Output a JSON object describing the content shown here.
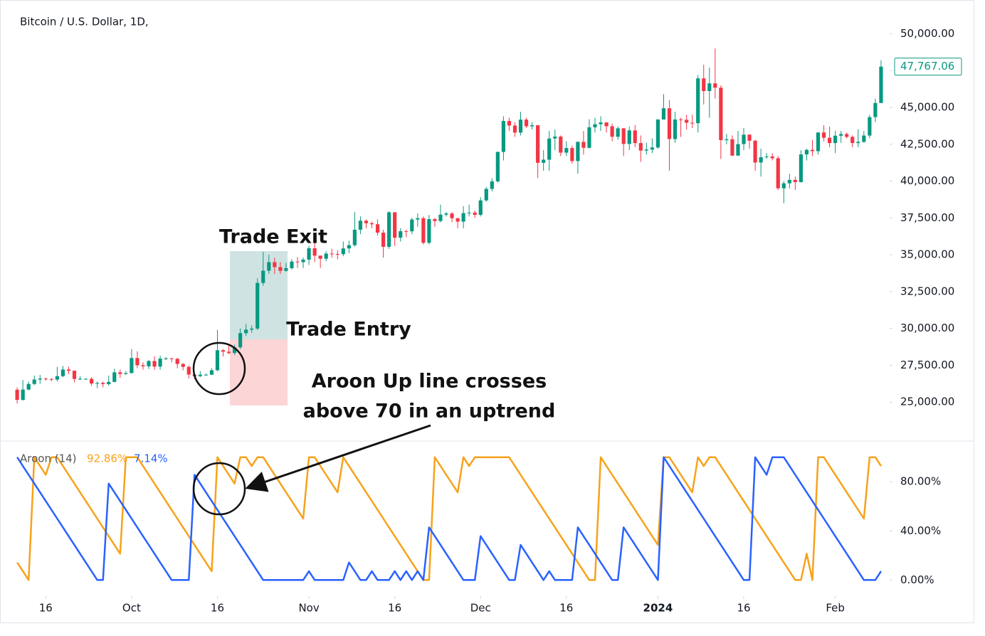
{
  "chart_data": [
    {
      "type": "candlestick",
      "title": "Bitcoin / U.S. Dollar, 1D,",
      "up_color": "#089981",
      "down_color": "#f23645",
      "xlim": [
        -3,
        152.5
      ],
      "ylim": [
        22500,
        52000
      ],
      "yticks": [
        {
          "value": 25000,
          "label": "25,000.00"
        },
        {
          "value": 27500,
          "label": "27,500.00"
        },
        {
          "value": 30000,
          "label": "30,000.00"
        },
        {
          "value": 32500,
          "label": "32,500.00"
        },
        {
          "value": 35000,
          "label": "35,000.00"
        },
        {
          "value": 37500,
          "label": "37,500.00"
        },
        {
          "value": 40000,
          "label": "40,000.00"
        },
        {
          "value": 42500,
          "label": "42,500.00"
        },
        {
          "value": 45000,
          "label": "45,000.00"
        },
        {
          "value": 47500,
          "label": "47,500.00"
        },
        {
          "value": 50000,
          "label": "50,000.00"
        }
      ],
      "last_price_label": "47,767.06",
      "annotations": [
        "Trade Exit",
        "Trade Entry",
        "Aroon Up line crosses",
        "above 70 in an uptrend"
      ],
      "open": [
        25840,
        25150,
        25850,
        26230,
        26530,
        26600,
        26570,
        26530,
        26760,
        27210,
        27130,
        26570,
        26580,
        26580,
        26260,
        26300,
        26220,
        26370,
        27020,
        26910,
        26970,
        27990,
        27500,
        27430,
        27790,
        27410,
        27950,
        27970,
        27940,
        27590,
        27390,
        26870,
        26760,
        26860,
        26860,
        27160,
        28520,
        28420,
        28330,
        28720,
        29680,
        29920,
        29990,
        33090,
        33920,
        34500,
        34160,
        33910,
        34090,
        34540,
        34500,
        34670,
        35440,
        34940,
        34730,
        35080,
        35050,
        35040,
        35430,
        35650,
        36700,
        37310,
        37140,
        37070,
        36500,
        35540,
        37880,
        36160,
        36600,
        36590,
        37390,
        37480,
        35810,
        37420,
        37290,
        37720,
        37800,
        37480,
        37250,
        37830,
        37860,
        37710,
        38690,
        39470,
        39980,
        41980,
        44080,
        43770,
        43290,
        44170,
        43720,
        43790,
        41240,
        41450,
        42890,
        43020,
        41930,
        42240,
        41360,
        42660,
        42260,
        43650,
        43860,
        43980,
        43720,
        43010,
        43580,
        42520,
        43440,
        42580,
        42070,
        42140,
        42280,
        44180,
        44940,
        42850,
        44180,
        44160,
        43960,
        43930,
        46970,
        46110,
        46630,
        46340,
        42780,
        42840,
        41730,
        42510,
        43150,
        42740,
        41260,
        41620,
        41670,
        41550,
        39510,
        39850,
        40080,
        39930,
        41810,
        42120,
        42030,
        43300,
        42940,
        42580,
        43080,
        43190,
        43000,
        42580,
        42660,
        43090,
        44340,
        45300
      ],
      "high": [
        26000,
        26500,
        26400,
        26800,
        26850,
        26650,
        26620,
        27400,
        27450,
        27400,
        27150,
        26750,
        26620,
        26700,
        26400,
        26400,
        26800,
        27250,
        27200,
        27100,
        28600,
        28450,
        27700,
        27850,
        28100,
        28150,
        28050,
        28000,
        28000,
        27650,
        27500,
        26950,
        27100,
        26950,
        27300,
        29900,
        28600,
        28900,
        28900,
        30000,
        30300,
        30200,
        33400,
        35200,
        35000,
        34800,
        34500,
        34450,
        34700,
        34850,
        34800,
        35600,
        35900,
        34950,
        35250,
        35400,
        35300,
        35900,
        35950,
        37900,
        37600,
        37400,
        37250,
        37400,
        36700,
        37950,
        37900,
        36800,
        36700,
        37500,
        37800,
        37600,
        37700,
        37500,
        38400,
        37900,
        37900,
        37500,
        38300,
        38400,
        38000,
        38900,
        39600,
        40200,
        42000,
        44400,
        44300,
        44000,
        44700,
        44300,
        44000,
        43800,
        42100,
        43400,
        43500,
        43100,
        42700,
        42400,
        42700,
        43400,
        44200,
        44300,
        44400,
        44000,
        43900,
        43700,
        43600,
        43700,
        43800,
        43100,
        42600,
        42900,
        44200,
        45900,
        45500,
        44700,
        44300,
        44500,
        44500,
        47200,
        47900,
        47700,
        49000,
        46500,
        43200,
        43100,
        43400,
        43600,
        43200,
        42800,
        42200,
        41900,
        41900,
        41700,
        40000,
        40500,
        40300,
        42100,
        42200,
        42800,
        43300,
        43800,
        43700,
        43400,
        43400,
        43300,
        43100,
        43500,
        43400,
        44500,
        45600,
        48200
      ],
      "low": [
        24900,
        25100,
        25800,
        26150,
        26250,
        26450,
        26400,
        26400,
        26700,
        26900,
        26350,
        26500,
        26520,
        26100,
        25950,
        26000,
        26120,
        26350,
        26650,
        26850,
        26950,
        27300,
        27200,
        27250,
        27200,
        27200,
        27850,
        27700,
        27300,
        27150,
        26600,
        26550,
        26700,
        26800,
        26850,
        27100,
        28100,
        28250,
        28200,
        28600,
        29500,
        29700,
        29900,
        32900,
        33700,
        33700,
        33700,
        33850,
        34000,
        34100,
        34100,
        34300,
        34500,
        34100,
        34550,
        34800,
        34700,
        34900,
        35100,
        35550,
        36400,
        36800,
        36800,
        36300,
        34800,
        35400,
        35600,
        35900,
        36200,
        36400,
        36900,
        35700,
        35700,
        36900,
        37200,
        37600,
        37200,
        36800,
        36800,
        37600,
        37500,
        37600,
        38600,
        39300,
        39900,
        41400,
        43400,
        43000,
        43100,
        43600,
        43500,
        40200,
        40700,
        40700,
        42100,
        41700,
        41700,
        41200,
        40500,
        41800,
        42200,
        43300,
        43400,
        43300,
        42700,
        42800,
        41700,
        42100,
        42300,
        41300,
        41800,
        41900,
        42200,
        44200,
        40700,
        42600,
        43000,
        43500,
        43600,
        43300,
        45200,
        44300,
        45600,
        41500,
        42500,
        41700,
        41700,
        42100,
        42200,
        40700,
        40300,
        41500,
        41400,
        39400,
        38500,
        39500,
        39400,
        39900,
        41400,
        41700,
        41800,
        42700,
        42300,
        41900,
        42600,
        42900,
        42300,
        42300,
        42600,
        42900,
        44000,
        45300
      ],
      "close": [
        25150,
        25850,
        26230,
        26530,
        26600,
        26570,
        26530,
        26760,
        27210,
        27130,
        26570,
        26580,
        26580,
        26260,
        26300,
        26220,
        26370,
        27020,
        26910,
        26970,
        27990,
        27500,
        27430,
        27790,
        27410,
        27950,
        27970,
        27940,
        27590,
        27390,
        26870,
        26760,
        26860,
        26860,
        27160,
        28520,
        28420,
        28330,
        28720,
        29680,
        29920,
        29990,
        33090,
        33920,
        34500,
        34160,
        33910,
        34090,
        34540,
        34500,
        34670,
        35440,
        34940,
        34730,
        35080,
        35050,
        35040,
        35430,
        35650,
        36700,
        37310,
        37140,
        37070,
        36500,
        35540,
        37880,
        36160,
        36600,
        36590,
        37390,
        37480,
        35810,
        37420,
        37290,
        37720,
        37800,
        37480,
        37250,
        37830,
        37860,
        37710,
        38690,
        39470,
        39980,
        41980,
        44080,
        43770,
        43290,
        44170,
        43720,
        43790,
        41240,
        41450,
        42890,
        43020,
        41930,
        42240,
        41360,
        42660,
        42260,
        43650,
        43860,
        43980,
        43720,
        43010,
        43580,
        42520,
        43440,
        42580,
        42070,
        42140,
        42280,
        44180,
        44940,
        42850,
        44180,
        44160,
        43960,
        43930,
        46970,
        46110,
        46630,
        46340,
        42780,
        42840,
        41730,
        42510,
        43150,
        42740,
        41260,
        41620,
        41670,
        41550,
        39510,
        39850,
        40080,
        39930,
        41810,
        42120,
        42030,
        43300,
        42940,
        42580,
        43080,
        43190,
        43000,
        42580,
        42660,
        43090,
        44340,
        45300,
        47767
      ]
    },
    {
      "type": "line",
      "title": "Aroon (14)",
      "xlim": [
        -3,
        152.5
      ],
      "ylim": [
        -12,
        112
      ],
      "yticks": [
        {
          "value": 0,
          "label": "0.00%"
        },
        {
          "value": 40,
          "label": "40.00%"
        },
        {
          "value": 80,
          "label": "80.00%"
        }
      ],
      "xticks": [
        {
          "value": 5,
          "label": "16"
        },
        {
          "value": 20,
          "label": "Oct"
        },
        {
          "value": 35,
          "label": "16"
        },
        {
          "value": 51,
          "label": "Nov"
        },
        {
          "value": 66,
          "label": "16"
        },
        {
          "value": 81,
          "label": "Dec"
        },
        {
          "value": 96,
          "label": "16"
        },
        {
          "value": 112,
          "label": "2024",
          "bold": true
        },
        {
          "value": 127,
          "label": "16"
        },
        {
          "value": 143,
          "label": "Feb"
        }
      ],
      "series": [
        {
          "color": "#f7a21b",
          "readout": "92.86%",
          "values": [
            14.29,
            7.14,
            0,
            100,
            92.86,
            85.71,
            100,
            100,
            92.86,
            85.71,
            78.57,
            71.43,
            64.29,
            57.14,
            50,
            42.86,
            35.71,
            28.57,
            21.43,
            100,
            100,
            100,
            92.86,
            85.71,
            78.57,
            71.43,
            64.29,
            57.14,
            50,
            42.86,
            35.71,
            28.57,
            21.43,
            14.29,
            7.14,
            100,
            92.86,
            85.71,
            78.57,
            100,
            100,
            92.86,
            100,
            100,
            92.86,
            85.71,
            78.57,
            71.43,
            64.29,
            57.14,
            50,
            100,
            100,
            92.86,
            85.71,
            78.57,
            71.43,
            100,
            92.86,
            85.71,
            78.57,
            71.43,
            64.29,
            57.14,
            50,
            42.86,
            35.71,
            28.57,
            21.43,
            14.29,
            7.14,
            0,
            0,
            100,
            92.86,
            85.71,
            78.57,
            71.43,
            100,
            92.86,
            100,
            100,
            100,
            100,
            100,
            100,
            100,
            92.86,
            85.71,
            78.57,
            71.43,
            64.29,
            57.14,
            50,
            42.86,
            35.71,
            28.57,
            21.43,
            14.29,
            7.14,
            0,
            0,
            100,
            92.86,
            85.71,
            78.57,
            71.43,
            64.29,
            57.14,
            50,
            42.86,
            35.71,
            28.57,
            100,
            100,
            92.86,
            85.71,
            78.57,
            71.43,
            100,
            92.86,
            100,
            100,
            92.86,
            85.71,
            78.57,
            71.43,
            64.29,
            57.14,
            50,
            42.86,
            35.71,
            28.57,
            21.43,
            14.29,
            7.14,
            0,
            0,
            21.43,
            0,
            100,
            100,
            92.86,
            85.71,
            78.57,
            71.43,
            64.29,
            57.14,
            50,
            100,
            100,
            92.86
          ]
        },
        {
          "color": "#2962ff",
          "readout": "7.14%",
          "values": [
            100,
            92.86,
            85.71,
            78.57,
            71.43,
            64.29,
            57.14,
            50,
            42.86,
            35.71,
            28.57,
            21.43,
            14.29,
            7.14,
            0,
            0,
            78.57,
            71.43,
            64.29,
            57.14,
            50,
            42.86,
            35.71,
            28.57,
            21.43,
            14.29,
            7.14,
            0,
            0,
            0,
            0,
            85.71,
            78.57,
            71.43,
            64.29,
            57.14,
            50,
            42.86,
            35.71,
            28.57,
            21.43,
            14.29,
            7.14,
            0,
            0,
            0,
            0,
            0,
            0,
            0,
            0,
            7.14,
            0,
            0,
            0,
            0,
            0,
            0,
            14.29,
            7.14,
            0,
            0,
            7.14,
            0,
            0,
            0,
            7.14,
            0,
            7.14,
            0,
            7.14,
            0,
            42.86,
            35.71,
            28.57,
            21.43,
            14.29,
            7.14,
            0,
            0,
            0,
            35.71,
            28.57,
            21.43,
            14.29,
            7.14,
            0,
            0,
            28.57,
            21.43,
            14.29,
            7.14,
            0,
            7.14,
            0,
            0,
            0,
            0,
            42.86,
            35.71,
            28.57,
            21.43,
            14.29,
            7.14,
            0,
            0,
            42.86,
            35.71,
            28.57,
            21.43,
            14.29,
            7.14,
            0,
            100,
            92.86,
            85.71,
            78.57,
            71.43,
            64.29,
            57.14,
            50,
            42.86,
            35.71,
            28.57,
            21.43,
            14.29,
            7.14,
            0,
            0,
            100,
            92.86,
            85.71,
            100,
            100,
            100,
            92.86,
            85.71,
            78.57,
            71.43,
            64.29,
            57.14,
            50,
            42.86,
            35.71,
            28.57,
            21.43,
            14.29,
            7.14,
            0,
            0,
            0,
            7.14
          ]
        }
      ]
    }
  ]
}
